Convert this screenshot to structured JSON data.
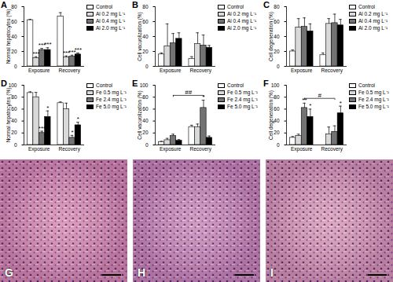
{
  "chart_data": [
    {
      "type": "bar",
      "title": "A",
      "y_label": "Normal hepatocytes (%)",
      "categories": [
        "Exposure",
        "Recovery"
      ],
      "series": [
        {
          "name": "Control",
          "color": "#ffffff",
          "values": [
            62,
            67
          ],
          "errors": [
            1,
            5
          ],
          "annotations": [
            null,
            null
          ]
        },
        {
          "name": "Al 0.2 mg L⁻¹",
          "color": "#d9d9d9",
          "values": [
            11,
            12
          ],
          "errors": [
            2,
            2
          ],
          "annotations": [
            "***",
            "***"
          ]
        },
        {
          "name": "Al 0.4 mg L⁻¹",
          "color": "#737373",
          "values": [
            22,
            13
          ],
          "errors": [
            2,
            2
          ],
          "annotations": [
            "***",
            "***"
          ]
        },
        {
          "name": "Al 2.0 mg L⁻¹",
          "color": "#000000",
          "values": [
            22,
            16
          ],
          "errors": [
            3,
            2
          ],
          "annotations": [
            "***",
            "***"
          ]
        }
      ],
      "ylim": [
        0,
        80
      ],
      "yticks": [
        0,
        20,
        40,
        60,
        80
      ],
      "legend": "right",
      "brackets": []
    },
    {
      "type": "bar",
      "title": "B",
      "y_label": "Cell vacuolization (%)",
      "categories": [
        "Exposure",
        "Recovery"
      ],
      "series": [
        {
          "name": "Control",
          "color": "#ffffff",
          "values": [
            16,
            10
          ],
          "errors": [
            2,
            3
          ],
          "annotations": [
            null,
            null
          ]
        },
        {
          "name": "Al 0.2 mg L⁻¹",
          "color": "#d9d9d9",
          "values": [
            27,
            30
          ],
          "errors": [
            30,
            15
          ],
          "annotations": [
            null,
            null
          ]
        },
        {
          "name": "Al 0.4 mg L⁻¹",
          "color": "#737373",
          "values": [
            31,
            28
          ],
          "errors": [
            13,
            14
          ],
          "annotations": [
            null,
            null
          ]
        },
        {
          "name": "Al 2.0 mg L⁻¹",
          "color": "#000000",
          "values": [
            37,
            25
          ],
          "errors": [
            8,
            3
          ],
          "annotations": [
            null,
            null
          ]
        }
      ],
      "ylim": [
        0,
        80
      ],
      "yticks": [
        0,
        20,
        40,
        60,
        80
      ],
      "legend": "right",
      "brackets": []
    },
    {
      "type": "bar",
      "title": "C",
      "y_label": "Cell degeneration (%)",
      "categories": [
        "Exposure",
        "Recovery"
      ],
      "series": [
        {
          "name": "Control",
          "color": "#ffffff",
          "values": [
            20,
            15
          ],
          "errors": [
            2,
            3
          ],
          "annotations": [
            null,
            null
          ]
        },
        {
          "name": "Al 0.2 mg L⁻¹",
          "color": "#d9d9d9",
          "values": [
            52,
            57
          ],
          "errors": [
            12,
            7
          ],
          "annotations": [
            null,
            null
          ]
        },
        {
          "name": "Al 0.4 mg L⁻¹",
          "color": "#737373",
          "values": [
            53,
            58
          ],
          "errors": [
            12,
            12
          ],
          "annotations": [
            null,
            null
          ]
        },
        {
          "name": "Al 2.0 mg L⁻¹",
          "color": "#000000",
          "values": [
            47,
            55
          ],
          "errors": [
            10,
            8
          ],
          "annotations": [
            null,
            null
          ]
        }
      ],
      "ylim": [
        0,
        80
      ],
      "yticks": [
        0,
        20,
        40,
        60,
        80
      ],
      "legend": "right",
      "brackets": []
    },
    {
      "type": "bar",
      "title": "D",
      "y_label": "Normal hepatocytes (%)",
      "categories": [
        "Exposure",
        "Recovery"
      ],
      "series": [
        {
          "name": "Control",
          "color": "#ffffff",
          "values": [
            87,
            70
          ],
          "errors": [
            2,
            2
          ],
          "annotations": [
            null,
            null
          ]
        },
        {
          "name": "Fe 0.5 mg L⁻¹",
          "color": "#d9d9d9",
          "values": [
            80,
            60
          ],
          "errors": [
            8,
            10
          ],
          "annotations": [
            null,
            null
          ]
        },
        {
          "name": "Fe 2.4 mg L⁻¹",
          "color": "#737373",
          "values": [
            20,
            12
          ],
          "errors": [
            3,
            4
          ],
          "annotations": [
            "***",
            "*"
          ]
        },
        {
          "name": "Fe 5.0 mg L⁻¹",
          "color": "#000000",
          "values": [
            47,
            33
          ],
          "errors": [
            10,
            5
          ],
          "annotations": [
            "*",
            "*"
          ]
        }
      ],
      "ylim": [
        0,
        100
      ],
      "yticks": [
        0,
        20,
        40,
        60,
        80,
        100
      ],
      "legend": "right",
      "brackets": []
    },
    {
      "type": "bar",
      "title": "E",
      "y_label": "Cell vacuolization (%)",
      "categories": [
        "Exposure",
        "Recovery"
      ],
      "series": [
        {
          "name": "Control",
          "color": "#ffffff",
          "values": [
            5,
            30
          ],
          "errors": [
            1,
            3
          ],
          "annotations": [
            null,
            null
          ]
        },
        {
          "name": "Fe 0.5 mg L⁻¹",
          "color": "#d9d9d9",
          "values": [
            8,
            30
          ],
          "errors": [
            3,
            5
          ],
          "annotations": [
            null,
            null
          ]
        },
        {
          "name": "Fe 2.4 mg L⁻¹",
          "color": "#737373",
          "values": [
            15,
            62
          ],
          "errors": [
            3,
            13
          ],
          "annotations": [
            null,
            "*"
          ]
        },
        {
          "name": "Fe 5.0 mg L⁻¹",
          "color": "#000000",
          "values": [
            7,
            12
          ],
          "errors": [
            2,
            3
          ],
          "annotations": [
            null,
            null
          ]
        }
      ],
      "ylim": [
        0,
        100
      ],
      "yticks": [
        0,
        20,
        40,
        60,
        80,
        100
      ],
      "legend": "right",
      "brackets": [
        {
          "series": "Fe 2.4 mg L⁻¹",
          "label": "##"
        }
      ]
    },
    {
      "type": "bar",
      "title": "F",
      "y_label": "Cell degeneration (%)",
      "categories": [
        "Exposure",
        "Recovery"
      ],
      "series": [
        {
          "name": "Control",
          "color": "#ffffff",
          "values": [
            12,
            0
          ],
          "errors": [
            2,
            0
          ],
          "annotations": [
            null,
            null
          ]
        },
        {
          "name": "Fe 0.5 mg L⁻¹",
          "color": "#d9d9d9",
          "values": [
            15,
            18
          ],
          "errors": [
            3,
            12
          ],
          "annotations": [
            null,
            null
          ]
        },
        {
          "name": "Fe 2.4 mg L⁻¹",
          "color": "#737373",
          "values": [
            62,
            22
          ],
          "errors": [
            8,
            10
          ],
          "annotations": [
            "**",
            null
          ]
        },
        {
          "name": "Fe 5.0 mg L⁻¹",
          "color": "#000000",
          "values": [
            47,
            53
          ],
          "errors": [
            13,
            12
          ],
          "annotations": [
            "*",
            "*"
          ]
        }
      ],
      "ylim": [
        0,
        100
      ],
      "yticks": [
        0,
        20,
        40,
        60,
        80,
        100
      ],
      "legend": "right",
      "brackets": [
        {
          "series": "Fe 2.4 mg L⁻¹",
          "label": "#"
        }
      ]
    }
  ],
  "images": [
    {
      "label": "G"
    },
    {
      "label": "H"
    },
    {
      "label": "I"
    }
  ]
}
